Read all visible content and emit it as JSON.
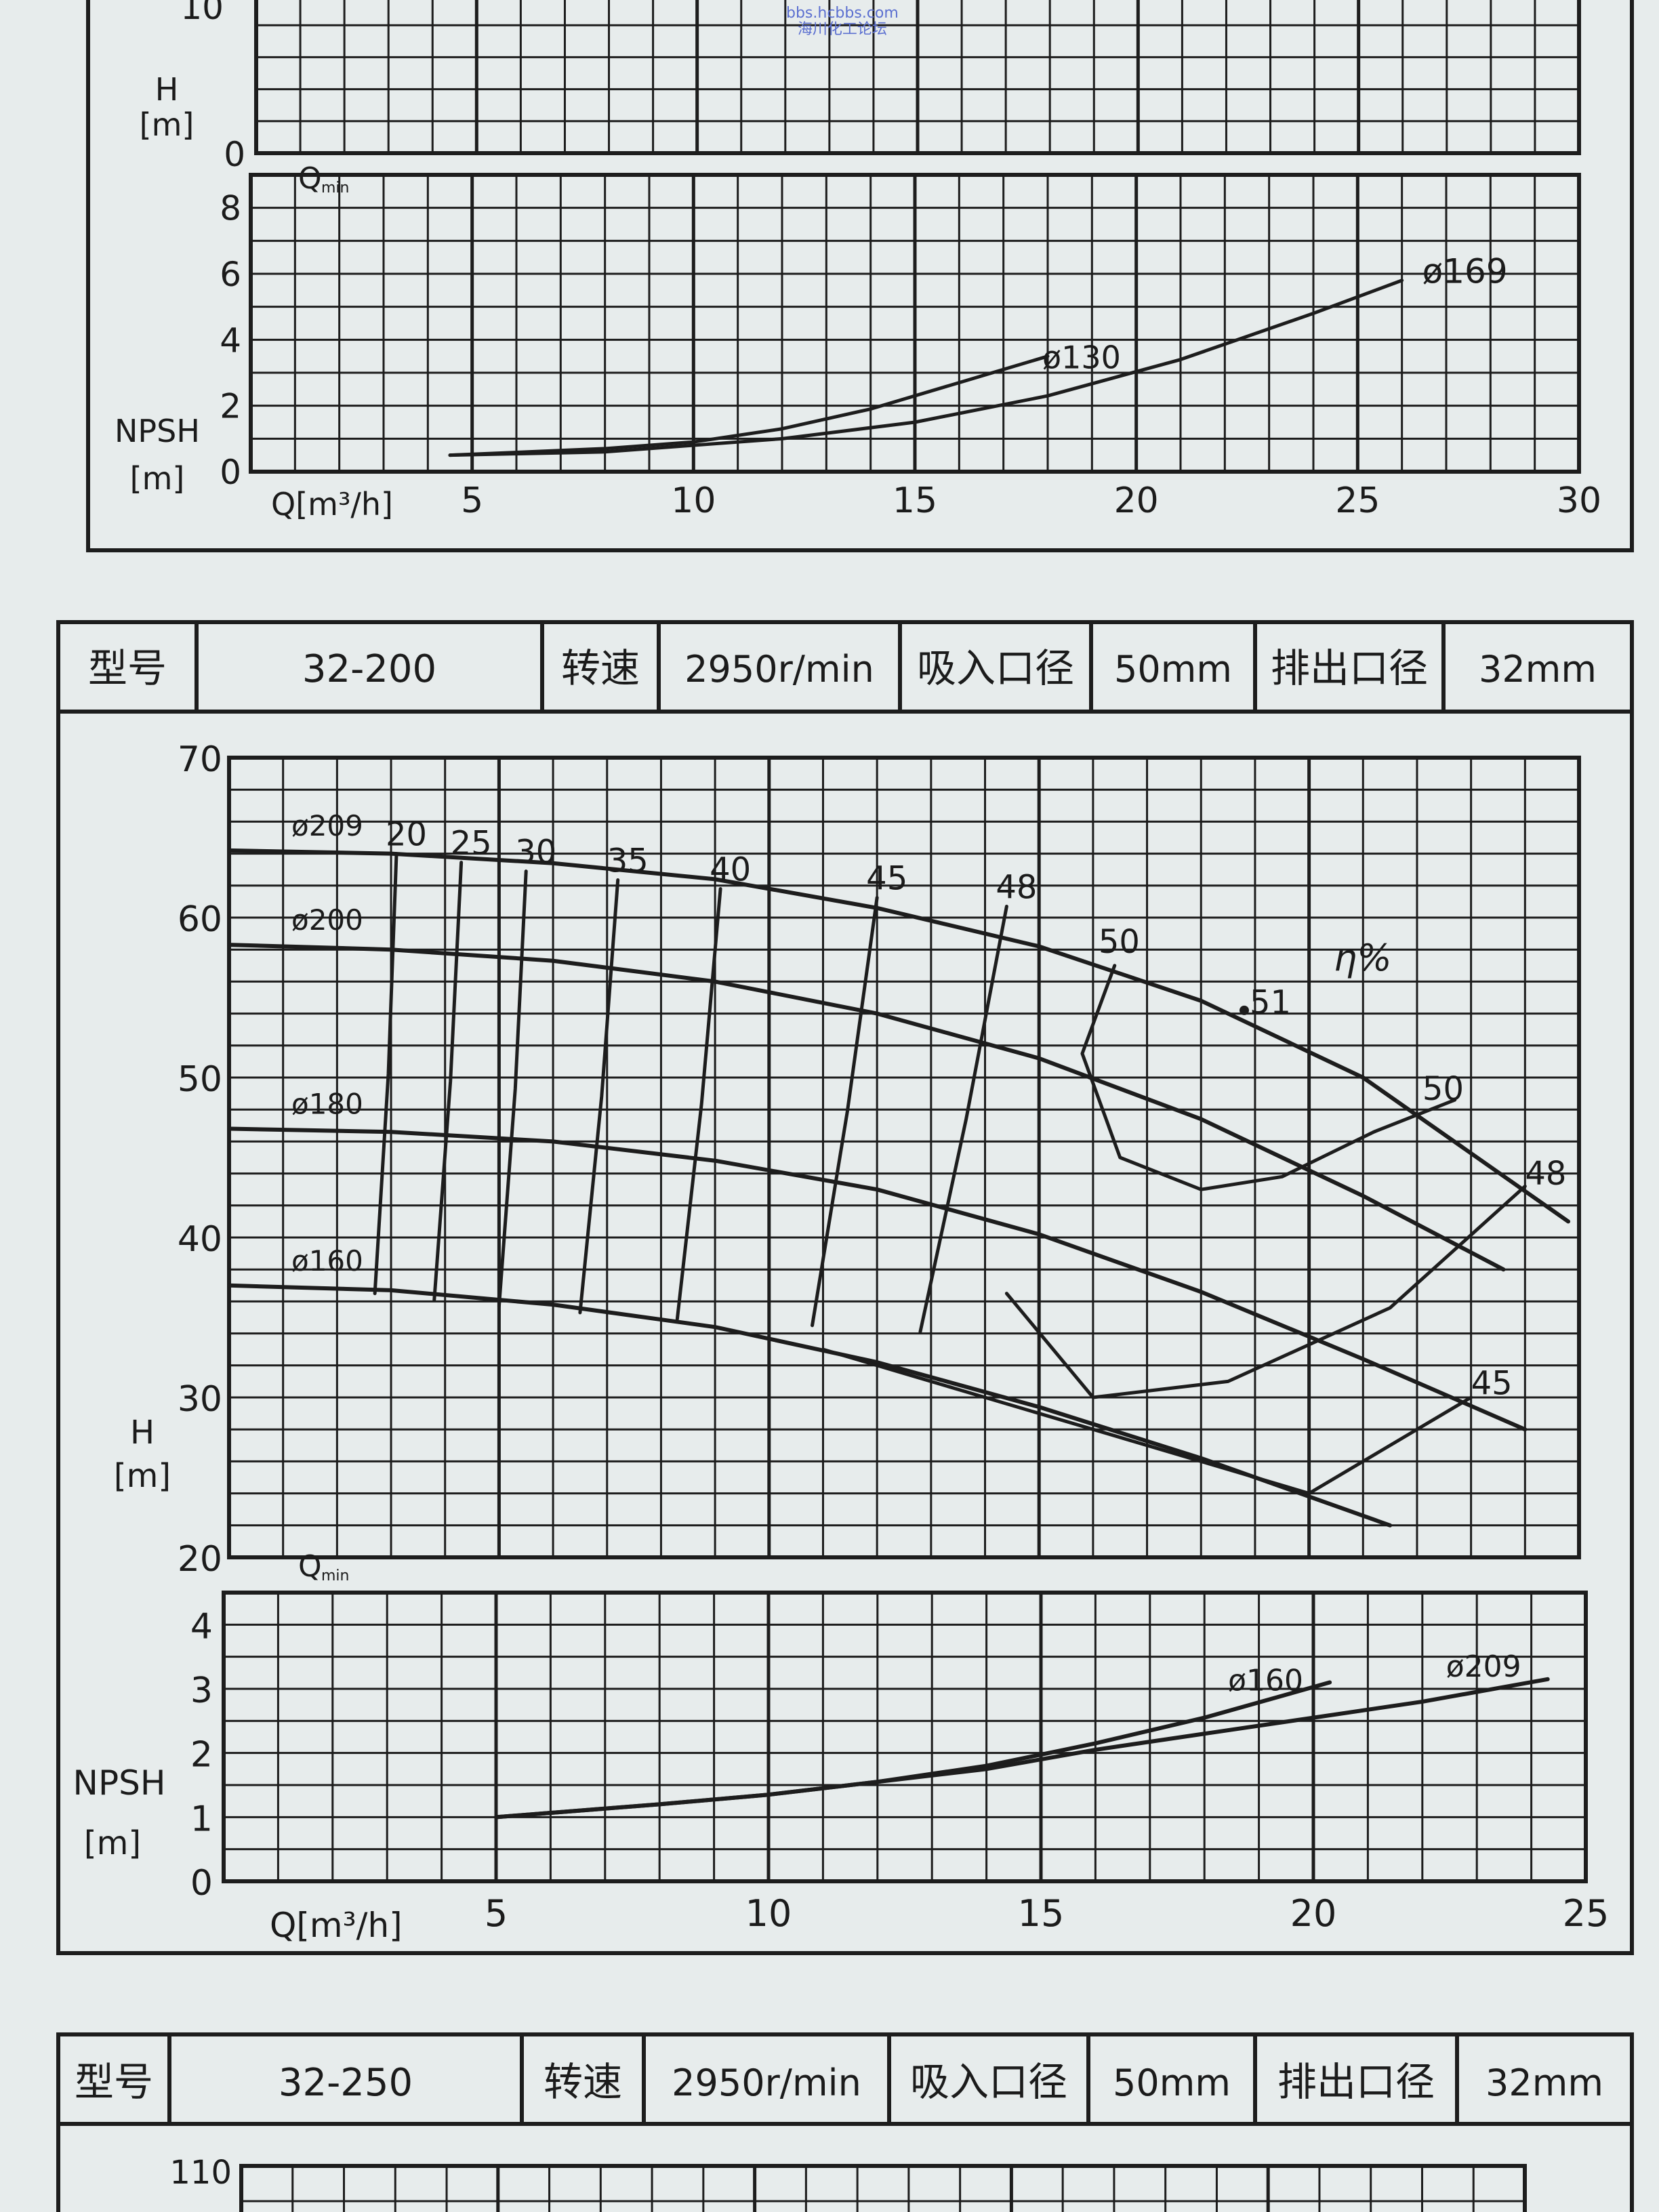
{
  "watermark": {
    "line1": "bbs.hcbbs.com",
    "line2": "海川化工论坛"
  },
  "top_fragment": {
    "h_ytick_top": "10",
    "h_ytick_zero": "0",
    "h_label": "H",
    "h_unit": "[m]",
    "qmin_label": "Q",
    "qmin_sub": "min",
    "npsh_label": "NPSH",
    "npsh_unit": "[m]",
    "x_label": "Q[m³/h]"
  },
  "block_32_200": {
    "header": {
      "model_label": "型号",
      "model_value": "32-200",
      "speed_label": "转速",
      "speed_value": "2950r/min",
      "suction_label": "吸入口径",
      "suction_value": "50mm",
      "discharge_label": "排出口径",
      "discharge_value": "32mm"
    },
    "h_label": "H",
    "h_unit": "[m]",
    "eta_label": "η%",
    "qmin_label": "Q",
    "qmin_sub": "min",
    "npsh_label": "NPSH",
    "npsh_unit": "[m]",
    "x_label": "Q[m³/h]"
  },
  "block_32_250": {
    "header": {
      "model_label": "型号",
      "model_value": "32-250",
      "speed_label": "转速",
      "speed_value": "2950r/min",
      "suction_label": "吸入口径",
      "suction_value": "50mm",
      "discharge_label": "排出口径",
      "discharge_value": "32mm"
    },
    "y_tick_top": "110"
  },
  "chart_data": [
    {
      "id": "npsh_top",
      "type": "line",
      "xlim": [
        0,
        30
      ],
      "ylim": [
        0,
        9
      ],
      "x_ticks": [
        5,
        10,
        15,
        20,
        25,
        30
      ],
      "y_ticks": [
        0,
        2,
        4,
        6,
        8
      ],
      "xlabel": "Q[m³/h]",
      "ylabel": "NPSH [m]",
      "grid": true,
      "series": [
        {
          "name": "ø130",
          "x": [
            4.5,
            8,
            10,
            12,
            14,
            16,
            18
          ],
          "y": [
            0.5,
            0.7,
            0.9,
            1.3,
            1.9,
            2.7,
            3.5
          ]
        },
        {
          "name": "ø169",
          "x": [
            4.5,
            8,
            10,
            12,
            15,
            18,
            21,
            24,
            26
          ],
          "y": [
            0.5,
            0.6,
            0.8,
            1.0,
            1.5,
            2.3,
            3.4,
            4.8,
            5.8
          ]
        }
      ]
    },
    {
      "id": "h_32_200",
      "type": "line",
      "xlim": [
        0,
        25
      ],
      "ylim": [
        20,
        70
      ],
      "y_ticks": [
        20,
        30,
        40,
        50,
        60,
        70
      ],
      "ylabel": "H [m]",
      "grid": true,
      "series": [
        {
          "name": "ø209",
          "x": [
            0,
            3,
            6,
            9,
            12,
            15,
            18,
            21,
            24.8
          ],
          "y": [
            64.2,
            64.0,
            63.4,
            62.4,
            60.6,
            58.2,
            54.8,
            50.0,
            41.0
          ]
        },
        {
          "name": "ø200",
          "x": [
            0,
            3,
            6,
            9,
            12,
            15,
            18,
            21,
            23.6
          ],
          "y": [
            58.3,
            58.0,
            57.3,
            56.0,
            54.0,
            51.2,
            47.4,
            42.6,
            38.0
          ]
        },
        {
          "name": "ø180",
          "x": [
            0,
            3,
            6,
            9,
            12,
            15,
            18,
            21,
            24.0
          ],
          "y": [
            46.8,
            46.6,
            46.0,
            44.8,
            43.0,
            40.2,
            36.6,
            32.4,
            28.0
          ]
        },
        {
          "name": "ø160",
          "x": [
            0,
            3,
            6,
            9,
            12,
            15,
            18,
            21.5
          ],
          "y": [
            37.0,
            36.7,
            35.8,
            34.4,
            32.2,
            29.4,
            26.2,
            22.0
          ]
        }
      ],
      "efficiency_labels": [
        "20",
        "25",
        "30",
        "35",
        "40",
        "45",
        "48",
        "50",
        "51",
        "50",
        "48",
        "45"
      ]
    },
    {
      "id": "npsh_32_200",
      "type": "line",
      "xlim": [
        0,
        25
      ],
      "ylim": [
        0,
        4.5
      ],
      "x_ticks": [
        5,
        10,
        15,
        20,
        25
      ],
      "y_ticks": [
        0,
        1,
        2,
        3,
        4
      ],
      "xlabel": "Q[m³/h]",
      "ylabel": "NPSH [m]",
      "grid": true,
      "series": [
        {
          "name": "ø160",
          "x": [
            5,
            8,
            10,
            12,
            14,
            16,
            18,
            20.3
          ],
          "y": [
            1.0,
            1.2,
            1.35,
            1.55,
            1.8,
            2.15,
            2.55,
            3.1
          ]
        },
        {
          "name": "ø209",
          "x": [
            5,
            8,
            10,
            12,
            14,
            16,
            18,
            20,
            22,
            24.3
          ],
          "y": [
            1.0,
            1.2,
            1.35,
            1.55,
            1.75,
            2.05,
            2.3,
            2.55,
            2.8,
            3.15
          ]
        }
      ]
    }
  ]
}
